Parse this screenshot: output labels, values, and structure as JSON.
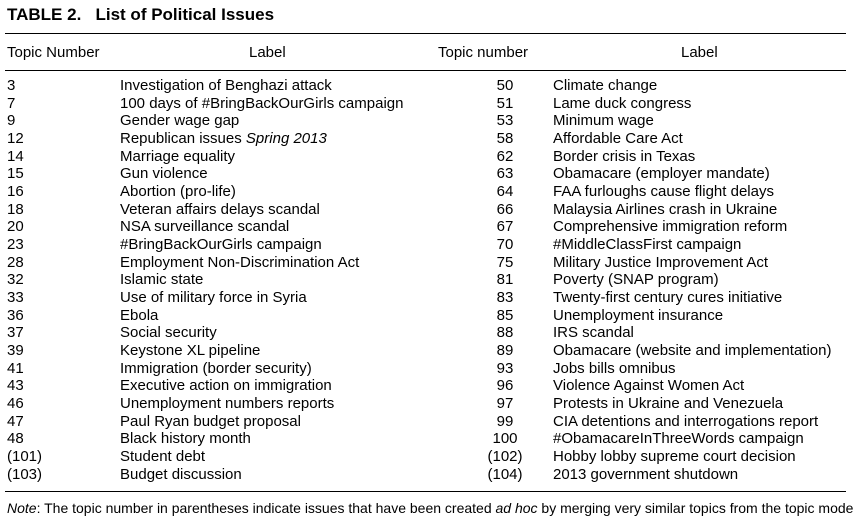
{
  "table": {
    "title_label": "TABLE 2.",
    "title_text": "List of Political Issues",
    "headers": {
      "num1": "Topic Number",
      "label1": "Label",
      "num2": "Topic number",
      "label2": "Label"
    },
    "rows": [
      {
        "n1": "3",
        "l1": "Investigation of Benghazi attack",
        "n2": "50",
        "l2": "Climate change"
      },
      {
        "n1": "7",
        "l1": "100 days of #BringBackOurGirls campaign",
        "n2": "51",
        "l2": "Lame duck congress"
      },
      {
        "n1": "9",
        "l1": "Gender wage gap",
        "n2": "53",
        "l2": "Minimum wage"
      },
      {
        "n1": "12",
        "l1": "Republican issues",
        "l1_italic": "Spring 2013",
        "n2": "58",
        "l2": "Affordable Care Act"
      },
      {
        "n1": "14",
        "l1": "Marriage equality",
        "n2": "62",
        "l2": "Border crisis in Texas"
      },
      {
        "n1": "15",
        "l1": "Gun violence",
        "n2": "63",
        "l2": "Obamacare (employer mandate)"
      },
      {
        "n1": "16",
        "l1": "Abortion (pro-life)",
        "n2": "64",
        "l2": "FAA furloughs cause flight delays"
      },
      {
        "n1": "18",
        "l1": "Veteran affairs delays scandal",
        "n2": "66",
        "l2": "Malaysia Airlines crash in Ukraine"
      },
      {
        "n1": "20",
        "l1": "NSA surveillance scandal",
        "n2": "67",
        "l2": "Comprehensive immigration reform"
      },
      {
        "n1": "23",
        "l1": "#BringBackOurGirls campaign",
        "n2": "70",
        "l2": "#MiddleClassFirst campaign"
      },
      {
        "n1": "28",
        "l1": "Employment Non-Discrimination Act",
        "n2": "75",
        "l2": "Military Justice Improvement Act"
      },
      {
        "n1": "32",
        "l1": "Islamic state",
        "n2": "81",
        "l2": "Poverty (SNAP program)"
      },
      {
        "n1": "33",
        "l1": "Use of military force in Syria",
        "n2": "83",
        "l2": "Twenty-first century cures initiative"
      },
      {
        "n1": "36",
        "l1": "Ebola",
        "n2": "85",
        "l2": "Unemployment insurance"
      },
      {
        "n1": "37",
        "l1": "Social security",
        "n2": "88",
        "l2": "IRS scandal"
      },
      {
        "n1": "39",
        "l1": "Keystone XL pipeline",
        "n2": "89",
        "l2": "Obamacare (website and implementation)"
      },
      {
        "n1": "41",
        "l1": "Immigration (border security)",
        "n2": "93",
        "l2": "Jobs bills omnibus"
      },
      {
        "n1": "43",
        "l1": "Executive action on immigration",
        "n2": "96",
        "l2": "Violence Against Women Act"
      },
      {
        "n1": "46",
        "l1": "Unemployment numbers reports",
        "n2": "97",
        "l2": "Protests in Ukraine and Venezuela"
      },
      {
        "n1": "47",
        "l1": "Paul Ryan budget proposal",
        "n2": "99",
        "l2": "CIA detentions and interrogations report"
      },
      {
        "n1": "48",
        "l1": "Black history month",
        "n2": "100",
        "l2": "#ObamacareInThreeWords campaign"
      },
      {
        "n1": "(101)",
        "l1": "Student debt",
        "n2": "(102)",
        "l2": "Hobby lobby supreme court decision"
      },
      {
        "n1": "(103)",
        "l1": "Budget discussion",
        "n2": "(104)",
        "l2": "2013 government shutdown"
      }
    ],
    "note": {
      "lead": "Note",
      "text1": ": The topic number in parentheses indicate issues that have been created ",
      "italic": "ad hoc",
      "text2": " by merging very similar topics from the topic model."
    }
  }
}
